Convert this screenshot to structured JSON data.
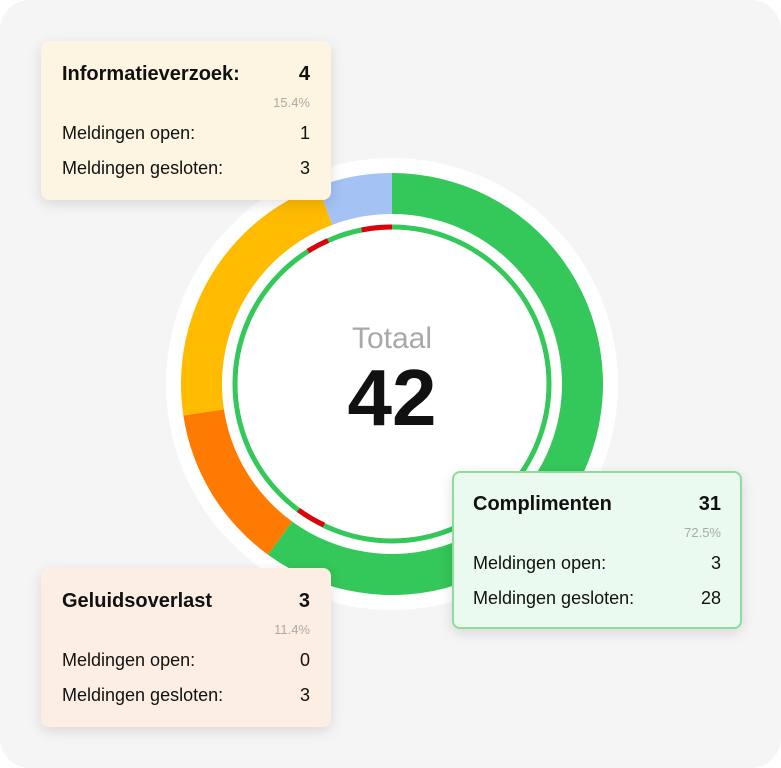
{
  "total": {
    "label": "Totaal",
    "value": 42
  },
  "ring": {
    "type": "donut",
    "segments": [
      {
        "color": "#34c759",
        "value": 25.2
      },
      {
        "color": "#ff7a00",
        "value": 5.3
      },
      {
        "color": "#ffbb00",
        "value": 9.1
      },
      {
        "color": "#a4c2f4",
        "value": 2.4
      }
    ]
  },
  "cards": [
    {
      "title": "Informatieverzoek:",
      "count": 4,
      "percent": "15.4%",
      "color": "#fdf5e1",
      "border": "#fdf5e1",
      "rows": [
        {
          "label": "Meldingen open:",
          "value": 1
        },
        {
          "label": "Meldingen gesloten:",
          "value": 3
        }
      ]
    },
    {
      "title": "Complimenten",
      "count": 31,
      "percent": "72.5%",
      "color": "#eafaee",
      "border": "#8ddc9c",
      "rows": [
        {
          "label": "Meldingen open:",
          "value": 3
        },
        {
          "label": "Meldingen gesloten:",
          "value": 28
        }
      ]
    },
    {
      "title": "Geluidsoverlast",
      "count": 3,
      "percent": "11.4%",
      "color": "#fdeee3",
      "border": "#fdeee3",
      "rows": [
        {
          "label": "Meldingen open:",
          "value": 0
        },
        {
          "label": "Meldingen gesloten:",
          "value": 3
        }
      ]
    }
  ]
}
